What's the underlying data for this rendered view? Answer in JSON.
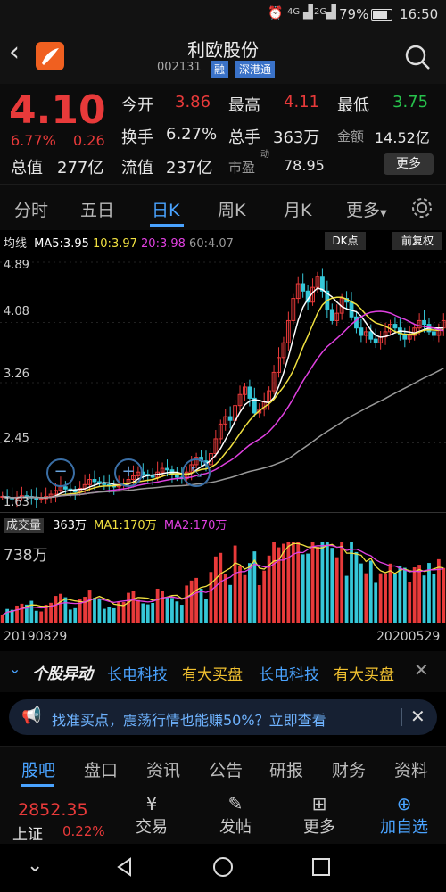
{
  "status": {
    "network": "4G",
    "network2": "2G",
    "battery": "79%",
    "time": "16:50"
  },
  "header": {
    "title": "利欧股份",
    "code": "002131",
    "badge1": "融",
    "badge2": "深港通"
  },
  "quote": {
    "price": "4.10",
    "change_pct": "6.77%",
    "change_abs": "0.26",
    "open_label": "今开",
    "open": "3.86",
    "high_label": "最高",
    "high": "4.11",
    "low_label": "最低",
    "low": "3.75",
    "turnover_label": "换手",
    "turnover": "6.27%",
    "volume_label": "总手",
    "volume": "363万",
    "amount_label": "金额",
    "amount": "14.52亿",
    "mktcap_label": "总值",
    "mktcap": "277亿",
    "float_label": "流值",
    "float": "237亿",
    "pe_label": "市盈",
    "pe_sup": "动",
    "pe": "78.95",
    "more": "更多"
  },
  "tabs": [
    "分时",
    "五日",
    "日K",
    "周K",
    "月K",
    "更多"
  ],
  "chart": {
    "ma_title": "均线",
    "ma5": "MA5:3.95",
    "ma10": "10:3.97",
    "ma20": "20:3.98",
    "ma60": "60:4.07",
    "dk": "DK点",
    "adj": "前复权",
    "y_labels": [
      "4.89",
      "4.08",
      "3.26",
      "2.45",
      "1.63"
    ],
    "vol_title": "成交量",
    "vol_value": "363万",
    "vol_ma1": "MA1:170万",
    "vol_ma2": "MA2:170万",
    "vol_max": "738万",
    "date_start": "20190829",
    "date_end": "20200529"
  },
  "chart_data": {
    "type": "candlestick",
    "ylim": [
      1.63,
      4.89
    ],
    "price_close": [
      1.72,
      1.7,
      1.69,
      1.71,
      1.73,
      1.72,
      1.7,
      1.68,
      1.69,
      1.72,
      1.75,
      1.8,
      1.85,
      1.82,
      1.8,
      1.78,
      1.83,
      1.88,
      1.95,
      1.92,
      1.9,
      1.88,
      1.86,
      1.85,
      1.88,
      1.9,
      1.95,
      2.0,
      2.05,
      2.02,
      2.0,
      1.98,
      2.05,
      2.1,
      2.08,
      2.02,
      1.98,
      1.96,
      2.05,
      2.15,
      2.25,
      2.2,
      2.15,
      2.3,
      2.5,
      2.7,
      2.8,
      2.75,
      2.95,
      3.1,
      3.2,
      3.05,
      2.85,
      2.9,
      3.0,
      3.15,
      3.4,
      3.6,
      3.8,
      4.1,
      4.4,
      4.6,
      4.5,
      4.35,
      4.55,
      4.7,
      4.5,
      4.25,
      4.1,
      4.2,
      4.4,
      4.35,
      4.15,
      4.0,
      3.9,
      3.95,
      3.85,
      3.8,
      3.88,
      3.95,
      4.05,
      4.0,
      3.92,
      3.85,
      3.9,
      4.0,
      4.1,
      4.05,
      3.95,
      3.9,
      4.0,
      4.1
    ],
    "volume_max": 738,
    "volume_unit": "万"
  },
  "ticker": {
    "label": "个股异动",
    "items": [
      {
        "name": "长电科技",
        "desc": "有大买盘"
      },
      {
        "name": "长电科技",
        "desc": "有大买盘"
      }
    ]
  },
  "promo": {
    "text": "找准买点，震荡行情也能赚50%？立即查看"
  },
  "bottom_tabs": [
    "股吧",
    "盘口",
    "资讯",
    "公告",
    "研报",
    "财务",
    "资料"
  ],
  "bottom_bar": {
    "index_value": "2852.35",
    "index_name": "上证",
    "index_change": "0.22%",
    "trade": "交易",
    "post": "发帖",
    "more": "更多",
    "add": "加自选"
  },
  "colors": {
    "up": "#e83a3a",
    "down": "#35c7d8",
    "ma5": "#ffffff",
    "ma10": "#f0e040",
    "ma20": "#e040e0",
    "ma60": "#999999",
    "accent": "#4aa3ff"
  }
}
